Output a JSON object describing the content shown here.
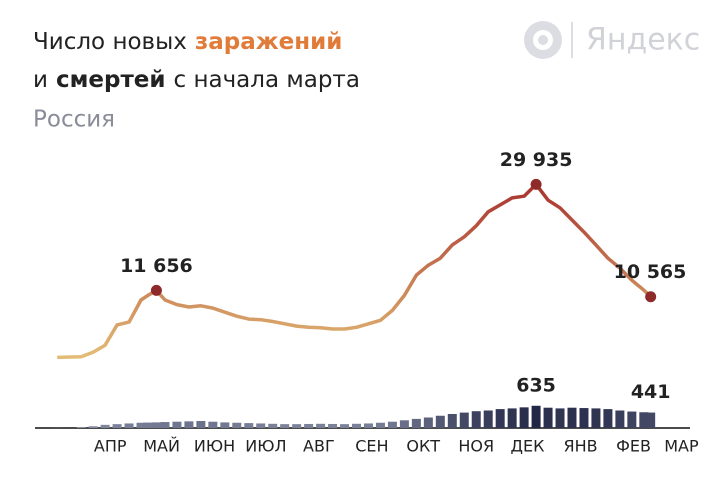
{
  "chart_data": {
    "type": "line-bar",
    "title": [
      "Число новых",
      "заражений",
      "и",
      "смертей",
      "с начала марта"
    ],
    "subtitle": "Россия",
    "logo": "Яндекс",
    "x": [
      0,
      14,
      21,
      28,
      35,
      42,
      49,
      53,
      58,
      63,
      70,
      77,
      84,
      91,
      98,
      105,
      112,
      119,
      126,
      133,
      140,
      147,
      154,
      161,
      168,
      175,
      182,
      189,
      196,
      203,
      210,
      217,
      224,
      231,
      238,
      245,
      252,
      259,
      266,
      273,
      280,
      287,
      294,
      301,
      308,
      315,
      322,
      329,
      336,
      343,
      347
    ],
    "xlim": [
      -13,
      370
    ],
    "xticks": [
      {
        "value": 31,
        "label": "АПР"
      },
      {
        "value": 61,
        "label": "МАЙ"
      },
      {
        "value": 92,
        "label": "ИЮН"
      },
      {
        "value": 122,
        "label": "ИЮЛ"
      },
      {
        "value": 153,
        "label": "АВГ"
      },
      {
        "value": 184,
        "label": "СЕН"
      },
      {
        "value": 214,
        "label": "ОКТ"
      },
      {
        "value": 245,
        "label": "НОЯ"
      },
      {
        "value": 275,
        "label": "ДЕК"
      },
      {
        "value": 306,
        "label": "ЯНВ"
      },
      {
        "value": 337,
        "label": "ФЕВ"
      },
      {
        "value": 365,
        "label": "МАР"
      }
    ],
    "ylim": [
      0,
      30000
    ],
    "y2lim": [
      0,
      1000
    ],
    "series": [
      {
        "name": "заражений",
        "color": "#e07b39",
        "color_scale": [
          "#e3bd76",
          "#a8322e"
        ],
        "marker_color": "#8e2a2a",
        "values": [
          100,
          200,
          1000,
          2200,
          5700,
          6200,
          10000,
          10800,
          11656,
          10000,
          9200,
          8800,
          9000,
          8600,
          7900,
          7200,
          6700,
          6600,
          6300,
          5900,
          5500,
          5300,
          5200,
          5000,
          5000,
          5300,
          5900,
          6500,
          8200,
          10800,
          14300,
          16000,
          17200,
          19500,
          20900,
          22800,
          25200,
          26400,
          27600,
          27900,
          29935,
          27200,
          25900,
          23800,
          21700,
          19500,
          17200,
          15500,
          13400,
          11700,
          10565
        ],
        "value_labels": [
          null,
          null,
          null,
          null,
          null,
          null,
          null,
          null,
          "11 656",
          null,
          null,
          null,
          null,
          null,
          null,
          null,
          null,
          null,
          null,
          null,
          null,
          null,
          null,
          null,
          null,
          null,
          null,
          null,
          null,
          null,
          null,
          null,
          null,
          null,
          null,
          null,
          null,
          null,
          null,
          null,
          "29 935",
          null,
          null,
          null,
          null,
          null,
          null,
          null,
          null,
          null,
          "10 565"
        ]
      },
      {
        "name": "смертей",
        "color": "#1c2140",
        "color_scale": [
          "#9095ad",
          "#1c2140"
        ],
        "axis": "y2",
        "values": [
          2,
          20,
          50,
          90,
          110,
          130,
          150,
          155,
          160,
          170,
          180,
          190,
          200,
          180,
          160,
          150,
          140,
          130,
          120,
          110,
          110,
          115,
          120,
          115,
          110,
          120,
          130,
          150,
          180,
          220,
          260,
          300,
          350,
          400,
          440,
          480,
          500,
          540,
          560,
          590,
          635,
          580,
          560,
          580,
          570,
          560,
          540,
          500,
          470,
          450,
          441
        ],
        "value_labels": [
          null,
          null,
          null,
          null,
          null,
          null,
          null,
          null,
          null,
          null,
          null,
          null,
          null,
          null,
          null,
          null,
          null,
          null,
          null,
          null,
          null,
          null,
          null,
          null,
          null,
          null,
          null,
          null,
          null,
          null,
          null,
          null,
          null,
          null,
          null,
          null,
          null,
          null,
          null,
          null,
          "635",
          null,
          null,
          null,
          null,
          null,
          null,
          null,
          null,
          null,
          "441"
        ]
      }
    ]
  }
}
